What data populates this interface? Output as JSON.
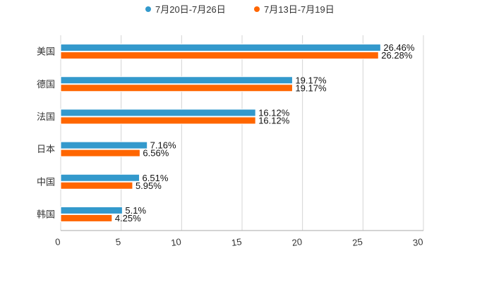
{
  "chart_data": {
    "type": "bar",
    "orientation": "horizontal",
    "categories": [
      "美国",
      "德国",
      "法国",
      "日本",
      "中国",
      "韩国"
    ],
    "series": [
      {
        "name": "7月20日-7月26日",
        "color": "#3399cc",
        "values": [
          26.46,
          19.17,
          16.12,
          7.16,
          6.51,
          5.1
        ],
        "labels": [
          "26.46%",
          "19.17%",
          "16.12%",
          "7.16%",
          "6.51%",
          "5.1%"
        ]
      },
      {
        "name": "7月13日-7月19日",
        "color": "#ff6600",
        "values": [
          26.28,
          19.17,
          16.12,
          6.56,
          5.95,
          4.25
        ],
        "labels": [
          "26.28%",
          "19.17%",
          "16.12%",
          "6.56%",
          "5.95%",
          "4.25%"
        ]
      }
    ],
    "xlim": [
      0,
      30
    ],
    "xticks": [
      0,
      5,
      10,
      15,
      20,
      25,
      30
    ],
    "xtick_labels": [
      "0",
      "5",
      "10",
      "15",
      "20",
      "25",
      "30"
    ],
    "grid": true,
    "legend_position": "top-center",
    "title": "",
    "xlabel": "",
    "ylabel": ""
  }
}
